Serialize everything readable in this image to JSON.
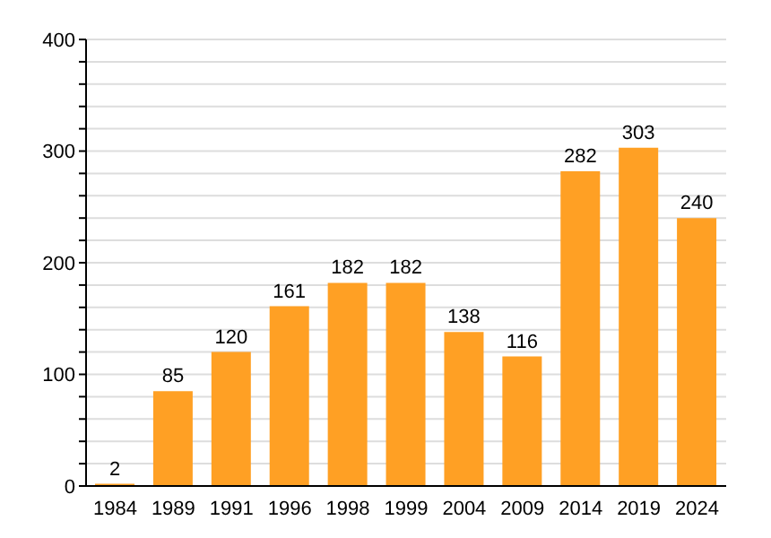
{
  "chart_data": {
    "type": "bar",
    "categories": [
      "1984",
      "1989",
      "1991",
      "1996",
      "1998",
      "1999",
      "2004",
      "2009",
      "2014",
      "2019",
      "2024"
    ],
    "values": [
      2,
      85,
      120,
      161,
      182,
      182,
      138,
      116,
      282,
      303,
      240
    ],
    "color": "#ffa024",
    "ylim": [
      0,
      400
    ],
    "yticks": [
      0,
      {
        "value": 20,
        "label": null
      },
      {
        "value": 40,
        "label": null
      },
      {
        "value": 60,
        "label": null
      },
      {
        "value": 80,
        "label": null
      },
      100,
      {
        "value": 120,
        "label": null
      },
      {
        "value": 140,
        "label": null
      },
      {
        "value": 160,
        "label": null
      },
      {
        "value": 180,
        "label": null
      },
      200,
      {
        "value": 220,
        "label": null
      },
      {
        "value": 240,
        "label": null
      },
      {
        "value": 260,
        "label": null
      },
      {
        "value": 280,
        "label": null
      },
      300,
      {
        "value": 320,
        "label": null
      },
      {
        "value": 340,
        "label": null
      },
      {
        "value": 360,
        "label": null
      },
      {
        "value": 380,
        "label": null
      },
      400
    ],
    "grid": "y",
    "data_labels": true
  }
}
